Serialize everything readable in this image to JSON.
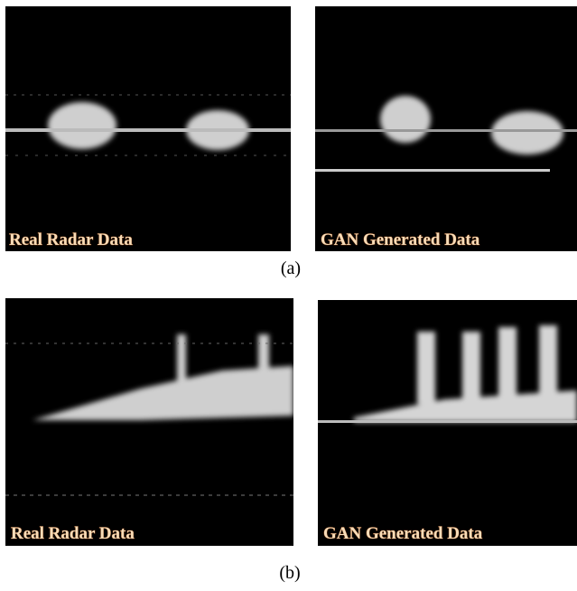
{
  "panels": [
    {
      "images": [
        {
          "label": "Real Radar Data"
        },
        {
          "label": "GAN Generated Data"
        }
      ],
      "caption": "(a)"
    },
    {
      "images": [
        {
          "label": "Real Radar Data"
        },
        {
          "label": "GAN Generated Data"
        }
      ],
      "caption": "(b)"
    }
  ]
}
